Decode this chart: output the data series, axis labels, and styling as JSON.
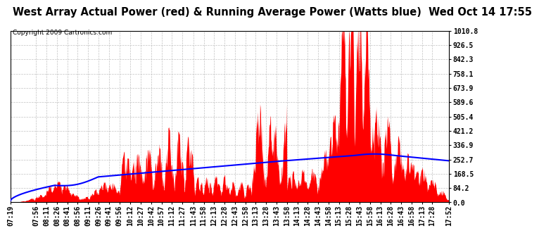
{
  "title": "West Array Actual Power (red) & Running Average Power (Watts blue)  Wed Oct 14 17:55",
  "copyright": "Copyright 2009 Cartronics.com",
  "ymin": 0.0,
  "ymax": 1010.8,
  "yticks": [
    0.0,
    84.2,
    168.5,
    252.7,
    336.9,
    421.2,
    505.4,
    589.6,
    673.9,
    758.1,
    842.3,
    926.5,
    1010.8
  ],
  "ytick_labels": [
    "0.0",
    "84.2",
    "168.5",
    "252.7",
    "336.9",
    "421.2",
    "505.4",
    "589.6",
    "673.9",
    "758.1",
    "842.3",
    "926.5",
    "1010.8"
  ],
  "background_color": "#ffffff",
  "plot_bg_color": "#ffffff",
  "grid_color": "#bbbbbb",
  "actual_color": "#ff0000",
  "avg_color": "#0000ff",
  "title_fontsize": 10.5,
  "tick_fontsize": 7,
  "xtick_labels": [
    "07:19",
    "07:56",
    "08:11",
    "08:26",
    "08:41",
    "08:56",
    "09:11",
    "09:26",
    "09:41",
    "09:56",
    "10:12",
    "10:27",
    "10:42",
    "10:57",
    "11:12",
    "11:27",
    "11:43",
    "11:58",
    "12:13",
    "12:28",
    "12:43",
    "12:58",
    "13:13",
    "13:28",
    "13:43",
    "13:58",
    "14:13",
    "14:28",
    "14:43",
    "14:58",
    "15:13",
    "15:28",
    "15:43",
    "15:58",
    "16:13",
    "16:28",
    "16:43",
    "16:58",
    "17:13",
    "17:28",
    "17:52"
  ]
}
